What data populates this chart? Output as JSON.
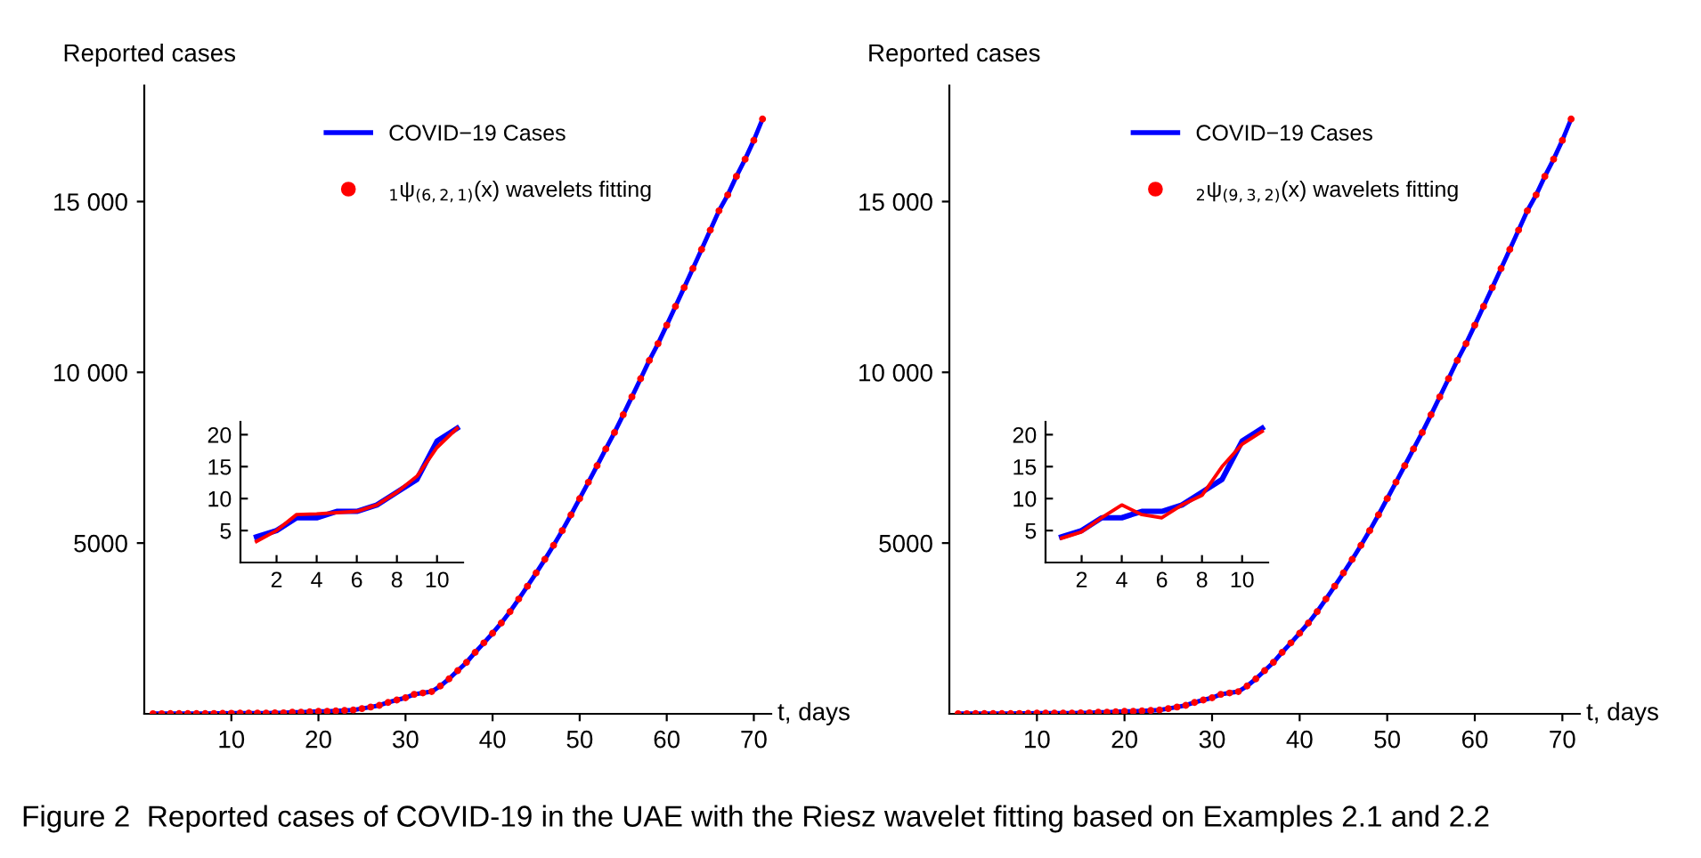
{
  "chart_data": [
    {
      "type": "line",
      "xlabel": "t, days",
      "ylabel": "Reported cases",
      "xlim": [
        0,
        72
      ],
      "ylim": [
        0,
        18400
      ],
      "xticks": [
        10,
        20,
        30,
        40,
        50,
        60,
        70
      ],
      "yticks": [
        5000,
        10000,
        15000
      ],
      "legend": "top",
      "grid": false,
      "annotations": [
        "Figure 2  Reported cases of COVID-19 in the UAE with the Riesz wavelet fitting based on Examples 2.1 and 2.2"
      ],
      "x": [
        1,
        2,
        3,
        4,
        5,
        6,
        7,
        8,
        9,
        10,
        11,
        12,
        13,
        14,
        15,
        16,
        17,
        18,
        19,
        20,
        21,
        22,
        23,
        24,
        25,
        26,
        27,
        28,
        29,
        30,
        31,
        32,
        33,
        34,
        35,
        36,
        37,
        38,
        39,
        40,
        41,
        42,
        43,
        44,
        45,
        46,
        47,
        48,
        49,
        50,
        51,
        52,
        53,
        54,
        55,
        56,
        57,
        58,
        59,
        60,
        61,
        62,
        63,
        64,
        65,
        66,
        67,
        68,
        69,
        70,
        71
      ],
      "series": [
        {
          "name": "COVID−19 Cases",
          "type": "line",
          "color": "#0000ff",
          "values": [
            4,
            5,
            7,
            7,
            8,
            8,
            9,
            11,
            13,
            19,
            21,
            21,
            21,
            21,
            27,
            29,
            45,
            45,
            59,
            74,
            74,
            85,
            98,
            113,
            153,
            198,
            248,
            333,
            405,
            468,
            570,
            611,
            650,
            814,
            1024,
            1264,
            1505,
            1799,
            2076,
            2359,
            2659,
            2990,
            3360,
            3736,
            4123,
            4521,
            4933,
            5365,
            5825,
            6302,
            6781,
            7265,
            7755,
            8238,
            8756,
            9281,
            9813,
            10349,
            10839,
            11380,
            11929,
            12481,
            13038,
            13599,
            14163,
            14730,
            15192,
            15738,
            16240,
            16793,
            17417
          ]
        },
        {
          "name": "$_{1}$ψ$_{(6,2,1)}$(x) wavelets fitting",
          "type": "scatter",
          "marker": "circle",
          "color": "#ff0000",
          "values": [
            3.3,
            5,
            7.5,
            7.6,
            7.8,
            8,
            9,
            11,
            13.5,
            18,
            21,
            21,
            21,
            21,
            27,
            29,
            45,
            45,
            59,
            74,
            74,
            85,
            98,
            113,
            153,
            198,
            248,
            333,
            405,
            468,
            570,
            611,
            650,
            814,
            1024,
            1264,
            1505,
            1799,
            2076,
            2359,
            2659,
            2990,
            3360,
            3736,
            4123,
            4521,
            4933,
            5365,
            5825,
            6302,
            6781,
            7265,
            7755,
            8238,
            8756,
            9281,
            9813,
            10349,
            10839,
            11380,
            11929,
            12481,
            13038,
            13599,
            14163,
            14730,
            15192,
            15738,
            16240,
            16793,
            17417
          ]
        }
      ]
    },
    {
      "type": "line",
      "xlim": [
        0.2,
        11.3
      ],
      "ylim": [
        0,
        22
      ],
      "xticks": [
        2,
        4,
        6,
        8,
        10
      ],
      "yticks": [
        5,
        10,
        15,
        20
      ],
      "grid": false,
      "x": [
        1,
        2,
        3,
        4,
        5,
        6,
        7,
        8,
        9,
        10,
        11
      ],
      "series": [
        {
          "color": "#0000ff",
          "values": [
            4,
            5,
            7,
            7,
            8,
            8,
            9,
            11,
            13,
            19,
            21
          ]
        },
        {
          "color": "#ff0000",
          "values": [
            3.3,
            5,
            7.5,
            7.6,
            7.8,
            8,
            9,
            11,
            13.5,
            18,
            21
          ]
        }
      ]
    },
    {
      "type": "line",
      "xlabel": "t, days",
      "ylabel": "Reported cases",
      "xlim": [
        0,
        72
      ],
      "ylim": [
        0,
        18400
      ],
      "xticks": [
        10,
        20,
        30,
        40,
        50,
        60,
        70
      ],
      "yticks": [
        5000,
        10000,
        15000
      ],
      "legend": "top",
      "grid": false,
      "x": [
        1,
        2,
        3,
        4,
        5,
        6,
        7,
        8,
        9,
        10,
        11,
        12,
        13,
        14,
        15,
        16,
        17,
        18,
        19,
        20,
        21,
        22,
        23,
        24,
        25,
        26,
        27,
        28,
        29,
        30,
        31,
        32,
        33,
        34,
        35,
        36,
        37,
        38,
        39,
        40,
        41,
        42,
        43,
        44,
        45,
        46,
        47,
        48,
        49,
        50,
        51,
        52,
        53,
        54,
        55,
        56,
        57,
        58,
        59,
        60,
        61,
        62,
        63,
        64,
        65,
        66,
        67,
        68,
        69,
        70,
        71
      ],
      "series": [
        {
          "name": "COVID−19 Cases",
          "type": "line",
          "color": "#0000ff",
          "values": [
            4,
            5,
            7,
            7,
            8,
            8,
            9,
            11,
            13,
            19,
            21,
            21,
            21,
            21,
            27,
            29,
            45,
            45,
            59,
            74,
            74,
            85,
            98,
            113,
            153,
            198,
            248,
            333,
            405,
            468,
            570,
            611,
            650,
            814,
            1024,
            1264,
            1505,
            1799,
            2076,
            2359,
            2659,
            2990,
            3360,
            3736,
            4123,
            4521,
            4933,
            5365,
            5825,
            6302,
            6781,
            7265,
            7755,
            8238,
            8756,
            9281,
            9813,
            10349,
            10839,
            11380,
            11929,
            12481,
            13038,
            13599,
            14163,
            14730,
            15192,
            15738,
            16240,
            16793,
            17417
          ]
        },
        {
          "name": "$_{2}$ψ$_{(9,3,2)}$(x) wavelets fitting",
          "type": "scatter",
          "marker": "circle",
          "color": "#ff0000",
          "values": [
            3.8,
            4.8,
            7,
            9,
            7.5,
            7,
            9,
            10.5,
            15,
            18.5,
            20.5,
            21,
            21,
            21,
            27,
            29,
            45,
            45,
            59,
            74,
            74,
            85,
            98,
            113,
            153,
            198,
            248,
            333,
            405,
            468,
            570,
            611,
            650,
            814,
            1024,
            1264,
            1505,
            1799,
            2076,
            2359,
            2659,
            2990,
            3360,
            3736,
            4123,
            4521,
            4933,
            5365,
            5825,
            6302,
            6781,
            7265,
            7755,
            8238,
            8756,
            9281,
            9813,
            10349,
            10839,
            11380,
            11929,
            12481,
            13038,
            13599,
            14163,
            14730,
            15192,
            15738,
            16240,
            16793,
            17417
          ]
        }
      ]
    },
    {
      "type": "line",
      "xlim": [
        0.2,
        11.3
      ],
      "ylim": [
        0,
        22
      ],
      "xticks": [
        2,
        4,
        6,
        8,
        10
      ],
      "yticks": [
        5,
        10,
        15,
        20
      ],
      "grid": false,
      "x": [
        1,
        2,
        3,
        4,
        5,
        6,
        7,
        8,
        9,
        10,
        11
      ],
      "series": [
        {
          "color": "#0000ff",
          "values": [
            4,
            5,
            7,
            7,
            8,
            8,
            9,
            11,
            13,
            19,
            21
          ]
        },
        {
          "color": "#ff0000",
          "values": [
            3.8,
            4.8,
            7,
            9,
            7.5,
            7,
            9,
            10.5,
            15,
            18.5,
            20.5
          ]
        }
      ]
    }
  ]
}
